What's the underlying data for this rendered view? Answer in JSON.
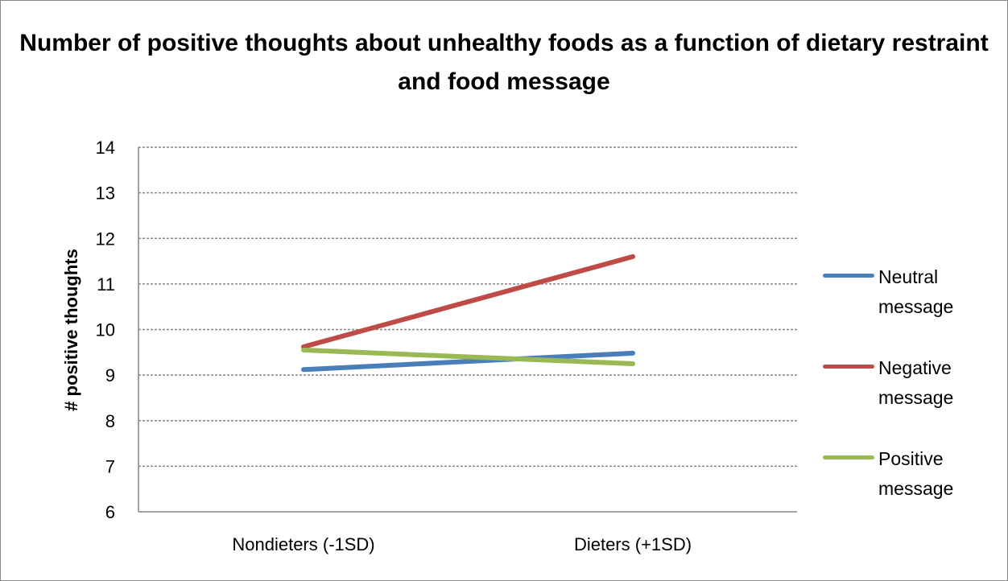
{
  "chart_data": {
    "type": "line",
    "title": "Number of positive thoughts about unhealthy foods as a function of dietary restraint and food message",
    "xlabel": "",
    "ylabel": "# positive thoughts",
    "categories": [
      "Nondieters (-1SD)",
      "Dieters (+1SD)"
    ],
    "ylim": [
      6,
      14
    ],
    "yticks": [
      6,
      7,
      8,
      9,
      10,
      11,
      12,
      13,
      14
    ],
    "grid": true,
    "legend_position": "right",
    "series": [
      {
        "name": "Neutral message",
        "values": [
          9.12,
          9.48
        ],
        "color": "#4a7ebb"
      },
      {
        "name": "Negative message",
        "values": [
          9.62,
          11.6
        ],
        "color": "#be4b48"
      },
      {
        "name": "Positive message",
        "values": [
          9.55,
          9.25
        ],
        "color": "#98b954"
      }
    ]
  }
}
